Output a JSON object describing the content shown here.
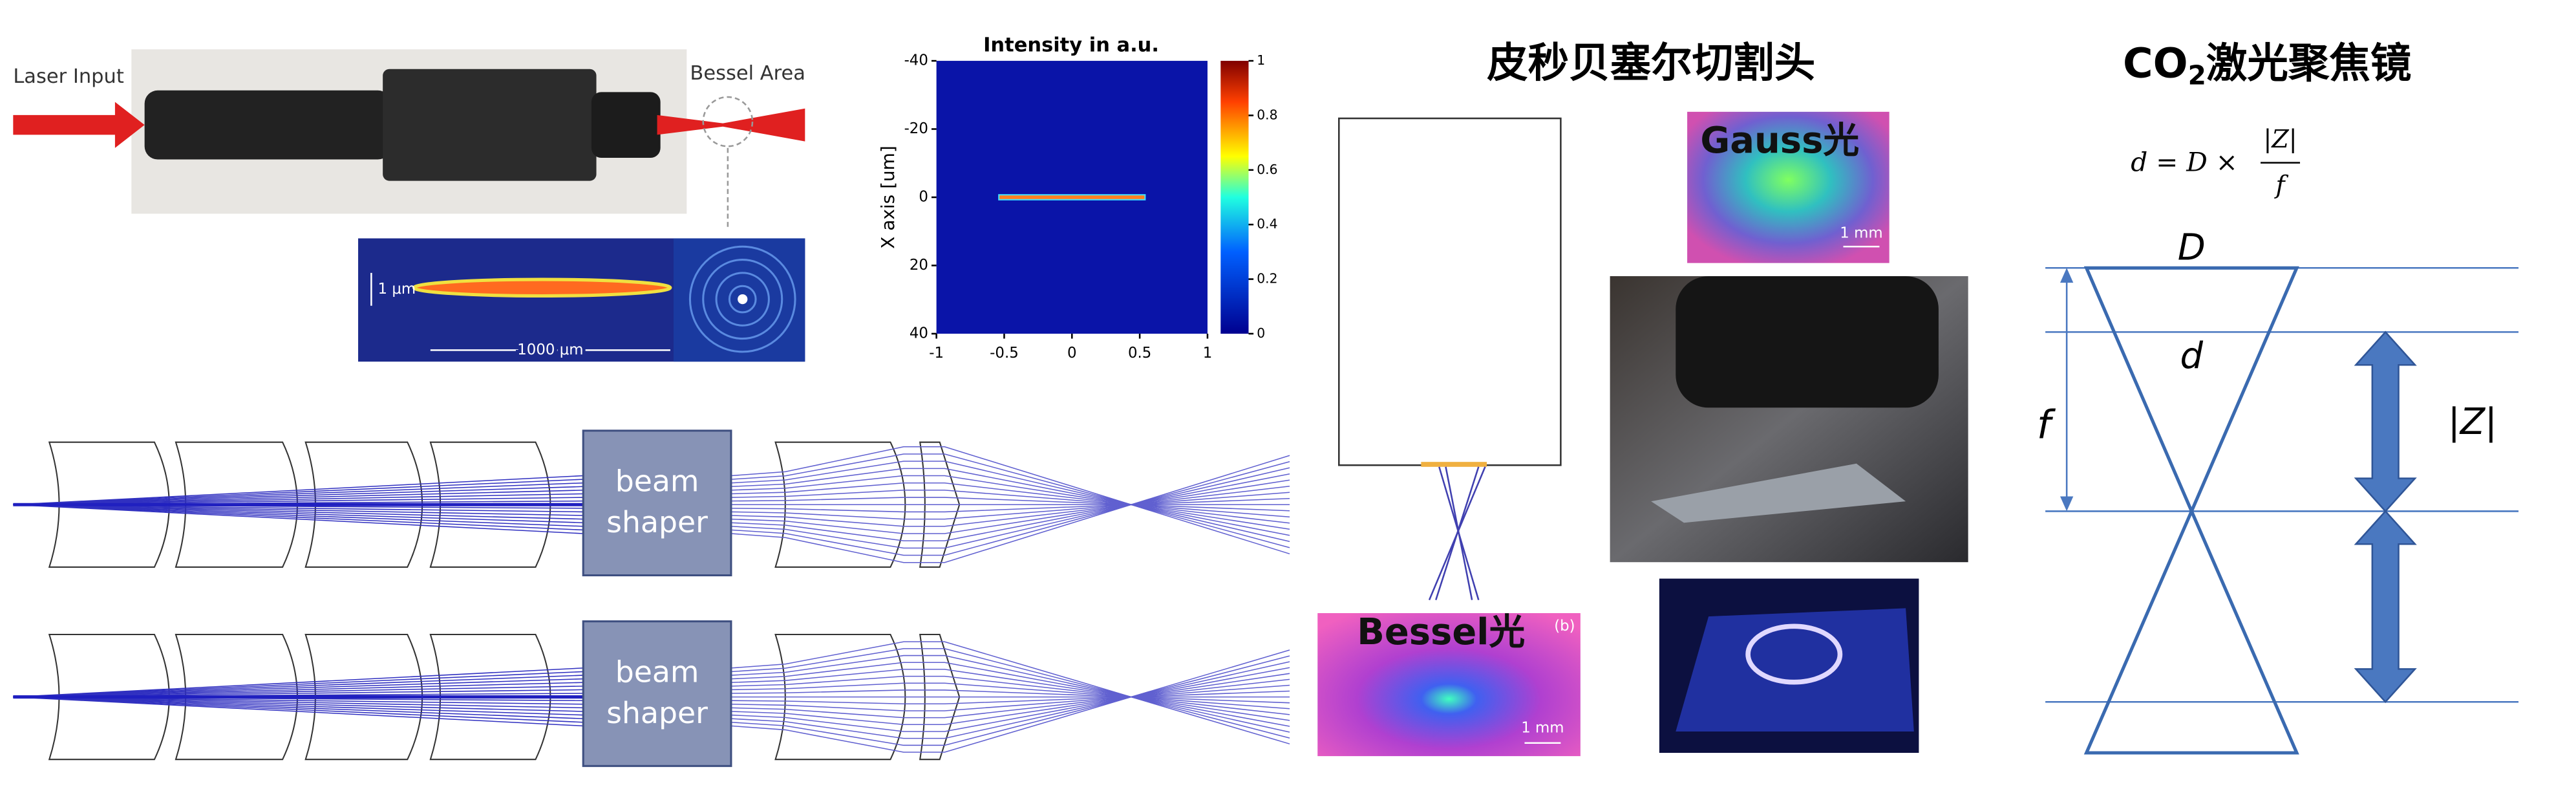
{
  "laser_photo": {
    "input_label": "Laser Input",
    "area_label": "Bessel Area",
    "scale_vertical": "1 μm",
    "scale_horizontal": "1000 μm"
  },
  "intensity_plot": {
    "title": "Intensity in a.u.",
    "y_label": "X axis [um]",
    "xlim": [
      -1,
      1
    ],
    "ylim": [
      -40,
      40
    ],
    "xticks": [
      -1,
      -0.5,
      0,
      0.5,
      1
    ],
    "yticks": [
      -40,
      -20,
      0,
      20,
      40
    ],
    "colorbar_lim": [
      0,
      1
    ],
    "colorbar_ticks": [
      0,
      0.2,
      0.4,
      0.6,
      0.8,
      1
    ]
  },
  "lens_rows": [
    {
      "box_label": [
        "beam",
        "shaper"
      ]
    },
    {
      "box_label": [
        "beam",
        "shaper"
      ]
    }
  ],
  "bessel_head": {
    "title": "皮秒贝塞尔切割头",
    "gauss_label": "Gauss光",
    "gauss_scale": "1 mm",
    "bessel_label": "Bessel光",
    "bessel_panel": "(b)",
    "bessel_scale": "1 mm"
  },
  "co2_lens": {
    "title_main": "CO",
    "title_sub": "2",
    "title_rest": "激光聚焦镜",
    "formula_lhs": "d = D ×",
    "formula_num": "|Z|",
    "formula_den": "f",
    "label_D": "D",
    "label_d": "d",
    "label_f": "f",
    "label_Z": "|Z|"
  }
}
